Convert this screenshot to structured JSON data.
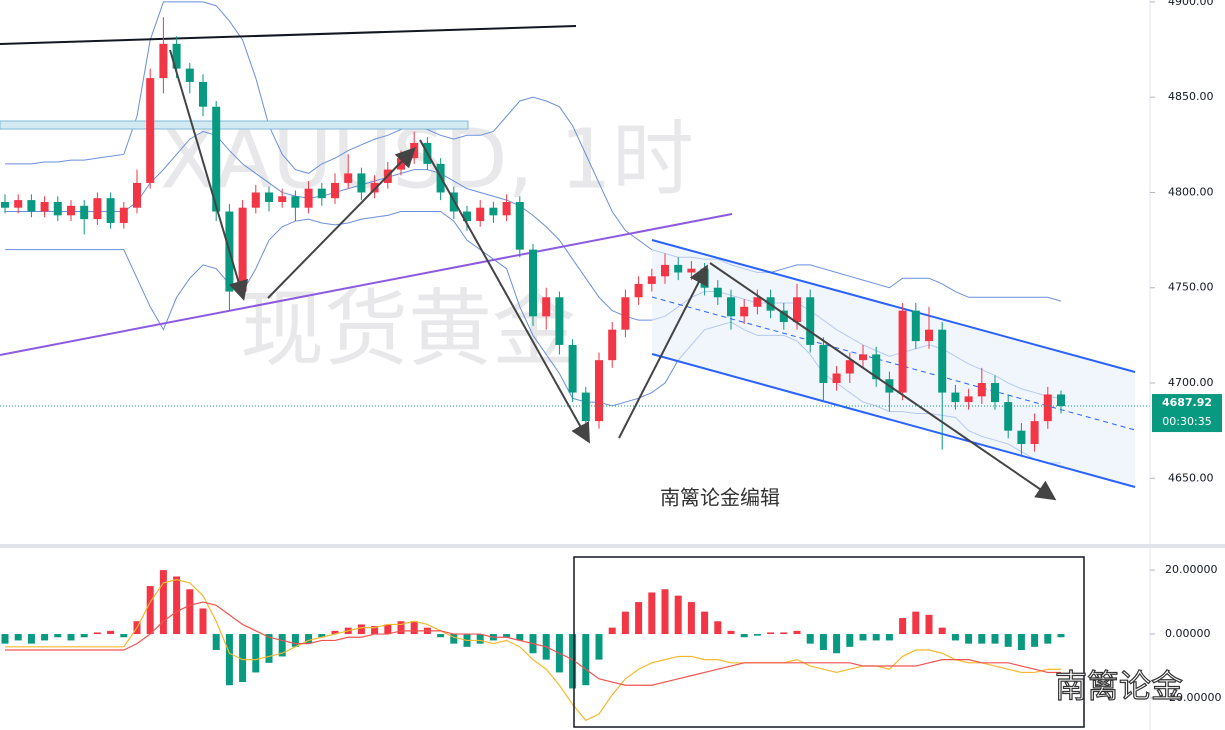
{
  "chart_data": [
    {
      "type": "candlestick",
      "title": "XAUUSD, 1时",
      "subtitle": "现货黄金",
      "annotation": "南篱论金编辑",
      "up_color": "#f23645",
      "down_color": "#089981",
      "ylim": [
        4615,
        4901
      ],
      "yticks": [
        {
          "value": 4650,
          "label": "4650.00"
        },
        {
          "value": 4700,
          "label": "4700.00"
        },
        {
          "value": 4750,
          "label": "4750.00"
        },
        {
          "value": 4800,
          "label": "4800.00"
        },
        {
          "value": 4850,
          "label": "4850.00"
        },
        {
          "value": 4900,
          "label": "4900.00"
        }
      ],
      "current_price": 4687.92,
      "countdown": "00:30:35",
      "ohlc": [
        [
          4795,
          4799,
          4789,
          4792
        ],
        [
          4792,
          4799,
          4789,
          4796
        ],
        [
          4796,
          4799,
          4787,
          4790
        ],
        [
          4790,
          4798,
          4787,
          4795
        ],
        [
          4795,
          4798,
          4785,
          4788
        ],
        [
          4788,
          4796,
          4785,
          4793
        ],
        [
          4793,
          4796,
          4778,
          4786
        ],
        [
          4786,
          4800,
          4783,
          4797
        ],
        [
          4797,
          4800,
          4781,
          4784
        ],
        [
          4784,
          4795,
          4781,
          4792
        ],
        [
          4792,
          4812,
          4789,
          4805
        ],
        [
          4805,
          4865,
          4802,
          4860
        ],
        [
          4860,
          4892,
          4852,
          4878
        ],
        [
          4878,
          4882,
          4860,
          4865
        ],
        [
          4865,
          4868,
          4852,
          4858
        ],
        [
          4858,
          4862,
          4840,
          4845
        ],
        [
          4845,
          4848,
          4785,
          4790
        ],
        [
          4790,
          4794,
          4738,
          4748
        ],
        [
          4748,
          4796,
          4745,
          4792
        ],
        [
          4792,
          4804,
          4789,
          4800
        ],
        [
          4800,
          4803,
          4790,
          4795
        ],
        [
          4795,
          4802,
          4792,
          4798
        ],
        [
          4798,
          4801,
          4785,
          4792
        ],
        [
          4792,
          4806,
          4789,
          4802
        ],
        [
          4802,
          4805,
          4793,
          4797
        ],
        [
          4797,
          4810,
          4794,
          4805
        ],
        [
          4805,
          4820,
          4802,
          4810
        ],
        [
          4810,
          4813,
          4796,
          4800
        ],
        [
          4800,
          4809,
          4797,
          4805
        ],
        [
          4805,
          4816,
          4802,
          4812
        ],
        [
          4812,
          4822,
          4809,
          4818
        ],
        [
          4818,
          4832,
          4815,
          4826
        ],
        [
          4826,
          4829,
          4812,
          4815
        ],
        [
          4815,
          4818,
          4796,
          4800
        ],
        [
          4800,
          4803,
          4786,
          4790
        ],
        [
          4790,
          4793,
          4780,
          4785
        ],
        [
          4785,
          4796,
          4782,
          4792
        ],
        [
          4792,
          4795,
          4784,
          4788
        ],
        [
          4788,
          4799,
          4785,
          4795
        ],
        [
          4795,
          4798,
          4766,
          4770
        ],
        [
          4770,
          4773,
          4730,
          4735
        ],
        [
          4735,
          4750,
          4728,
          4745
        ],
        [
          4745,
          4748,
          4715,
          4720
        ],
        [
          4720,
          4723,
          4690,
          4695
        ],
        [
          4695,
          4698,
          4670,
          4680
        ],
        [
          4680,
          4716,
          4676,
          4712
        ],
        [
          4712,
          4732,
          4708,
          4728
        ],
        [
          4728,
          4749,
          4724,
          4745
        ],
        [
          4745,
          4756,
          4741,
          4752
        ],
        [
          4752,
          4760,
          4748,
          4756
        ],
        [
          4756,
          4768,
          4752,
          4762
        ],
        [
          4762,
          4766,
          4754,
          4758
        ],
        [
          4758,
          4764,
          4754,
          4760
        ],
        [
          4760,
          4763,
          4746,
          4750
        ],
        [
          4750,
          4754,
          4741,
          4745
        ],
        [
          4745,
          4749,
          4728,
          4735
        ],
        [
          4735,
          4744,
          4731,
          4740
        ],
        [
          4740,
          4749,
          4736,
          4745
        ],
        [
          4745,
          4749,
          4734,
          4738
        ],
        [
          4738,
          4742,
          4728,
          4732
        ],
        [
          4732,
          4752,
          4728,
          4745
        ],
        [
          4745,
          4749,
          4716,
          4720
        ],
        [
          4720,
          4724,
          4690,
          4700
        ],
        [
          4700,
          4709,
          4696,
          4705
        ],
        [
          4705,
          4716,
          4700,
          4712
        ],
        [
          4712,
          4720,
          4708,
          4715
        ],
        [
          4715,
          4719,
          4698,
          4702
        ],
        [
          4702,
          4706,
          4685,
          4695
        ],
        [
          4695,
          4742,
          4691,
          4738
        ],
        [
          4738,
          4742,
          4718,
          4722
        ],
        [
          4722,
          4740,
          4718,
          4728
        ],
        [
          4728,
          4732,
          4665,
          4695
        ],
        [
          4695,
          4699,
          4686,
          4690
        ],
        [
          4690,
          4697,
          4686,
          4693
        ],
        [
          4693,
          4708,
          4689,
          4700
        ],
        [
          4700,
          4704,
          4686,
          4690
        ],
        [
          4690,
          4694,
          4671,
          4675
        ],
        [
          4675,
          4679,
          4662,
          4668
        ],
        [
          4668,
          4684,
          4664,
          4680
        ],
        [
          4680,
          4698,
          4676,
          4694
        ],
        [
          4694,
          4696,
          4684,
          4687.92
        ]
      ],
      "series": [
        {
          "color": "#6a8fdc",
          "values": [
            4815,
            4815,
            4815,
            4816,
            4816,
            4817,
            4817,
            4818,
            4819,
            4820,
            4840,
            4880,
            4900,
            4900,
            4900,
            4900,
            4898,
            4890,
            4880,
            4860,
            4835,
            4820,
            4812,
            4810,
            4815,
            4818,
            4822,
            4825,
            4828,
            4830,
            4833,
            4835,
            4833,
            4830,
            4828,
            4830,
            4830,
            4832,
            4840,
            4848,
            4850,
            4848,
            4845,
            4835,
            4820,
            4805,
            4790,
            4780,
            4775,
            4770,
            4768,
            4766,
            4766,
            4765,
            4765,
            4762,
            4760,
            4758,
            4758,
            4760,
            4762,
            4762,
            4760,
            4758,
            4756,
            4754,
            4752,
            4750,
            4755,
            4755,
            4755,
            4752,
            4748,
            4745,
            4745,
            4745,
            4745,
            4745,
            4745,
            4745,
            4743
          ]
        },
        {
          "color": "#6a8fdc",
          "values": [
            4790,
            4790,
            4790,
            4790,
            4790,
            4790,
            4790,
            4790,
            4790,
            4790,
            4795,
            4805,
            4812,
            4820,
            4828,
            4832,
            4830,
            4822,
            4815,
            4810,
            4805,
            4800,
            4798,
            4797,
            4798,
            4800,
            4802,
            4804,
            4806,
            4808,
            4810,
            4812,
            4812,
            4810,
            4806,
            4802,
            4800,
            4798,
            4796,
            4793,
            4788,
            4782,
            4775,
            4765,
            4755,
            4745,
            4738,
            4735,
            4733,
            4733,
            4735,
            4740,
            4745,
            4748,
            4748,
            4746,
            4744,
            4742,
            4742,
            4742,
            4742,
            4738,
            4733,
            4728,
            4724,
            4720,
            4717,
            4714,
            4716,
            4718,
            4720,
            4718,
            4714,
            4710,
            4707,
            4704,
            4700,
            4697,
            4695,
            4693,
            4692
          ]
        },
        {
          "color": "#6a8fdc",
          "values": [
            4770,
            4770,
            4770,
            4770,
            4770,
            4770,
            4770,
            4770,
            4770,
            4770,
            4755,
            4740,
            4728,
            4745,
            4755,
            4762,
            4760,
            4752,
            4748,
            4760,
            4775,
            4782,
            4785,
            4786,
            4784,
            4783,
            4784,
            4786,
            4787,
            4788,
            4790,
            4790,
            4790,
            4790,
            4785,
            4775,
            4770,
            4765,
            4760,
            4740,
            4725,
            4715,
            4705,
            4692,
            4690,
            4690,
            4688,
            4690,
            4692,
            4695,
            4700,
            4712,
            4720,
            4728,
            4730,
            4732,
            4728,
            4725,
            4725,
            4725,
            4722,
            4715,
            4705,
            4700,
            4695,
            4690,
            4688,
            4685,
            4685,
            4684,
            4684,
            4683,
            4682,
            4675,
            4672,
            4670,
            4668,
            4664,
            4660,
            4658,
            4658
          ]
        }
      ]
    },
    {
      "type": "macd",
      "pos_color": "#f23645",
      "neg_color": "#089981",
      "ylim": [
        -30,
        26.9
      ],
      "yticks": [
        {
          "value": -20,
          "label": "-20.00000"
        },
        {
          "value": 0,
          "label": "0.00000"
        },
        {
          "value": 20,
          "label": "20.00000"
        }
      ],
      "histogram": [
        -3,
        -2,
        -3,
        -2,
        -1,
        -2,
        -1,
        0.5,
        1,
        -1,
        4,
        15,
        20,
        18,
        14,
        8,
        -5,
        -16,
        -15,
        -12,
        -9,
        -7,
        -4,
        -3,
        -1,
        1,
        2,
        3,
        2.5,
        3,
        4,
        4,
        2,
        -1,
        -3,
        -4,
        -3,
        -2,
        -1,
        -2,
        -6,
        -8,
        -12,
        -17,
        -16,
        -8,
        2,
        7,
        10,
        13,
        14,
        12,
        10,
        7,
        4,
        1,
        -1,
        -0.5,
        0.5,
        0.5,
        1,
        -3,
        -5,
        -6,
        -4,
        -2,
        -2,
        -2,
        5,
        7,
        6,
        2,
        -2,
        -3,
        -3,
        -3,
        -4,
        -5,
        -4,
        -3,
        -1
      ],
      "series": [
        {
          "color": "#f5b82e",
          "values": [
            -4,
            -4,
            -4,
            -4,
            -4,
            -4,
            -4,
            -4,
            -4,
            -4,
            2,
            10,
            16,
            17,
            16,
            12,
            4,
            -6,
            -8,
            -8,
            -7,
            -6,
            -4,
            -2,
            -1,
            0,
            1,
            2,
            2,
            3,
            3,
            4,
            3,
            1,
            -1,
            -2,
            -2,
            -3,
            -2,
            -4,
            -8,
            -11,
            -16,
            -22,
            -27,
            -25,
            -19,
            -14,
            -11,
            -9,
            -8,
            -7,
            -7,
            -8,
            -8,
            -9,
            -9,
            -9,
            -9,
            -9,
            -8,
            -10,
            -11,
            -12,
            -11,
            -10,
            -10,
            -11,
            -7,
            -5,
            -5,
            -6,
            -8,
            -9,
            -9,
            -10,
            -11,
            -12,
            -12,
            -11,
            -11
          ]
        },
        {
          "color": "#ef5350",
          "values": [
            -5,
            -5,
            -5,
            -5,
            -5,
            -5,
            -5,
            -5,
            -5,
            -5,
            -3,
            0,
            4,
            7,
            9,
            10,
            9,
            6,
            3,
            1,
            -1,
            -2,
            -3,
            -3,
            -2,
            -2,
            -1,
            -1,
            0,
            0,
            1,
            1,
            1,
            1,
            0,
            0,
            0,
            -1,
            -1,
            -2,
            -3,
            -4,
            -6,
            -8,
            -11,
            -14,
            -15,
            -16,
            -16,
            -16,
            -15,
            -14,
            -13,
            -12,
            -11,
            -10,
            -9,
            -9,
            -9,
            -9,
            -9,
            -9,
            -9,
            -9,
            -9,
            -10,
            -10,
            -10,
            -10,
            -10,
            -9,
            -8,
            -8,
            -8,
            -9,
            -9,
            -9,
            -10,
            -11,
            -12,
            -12
          ]
        }
      ]
    }
  ],
  "watermark": "南篱论金"
}
